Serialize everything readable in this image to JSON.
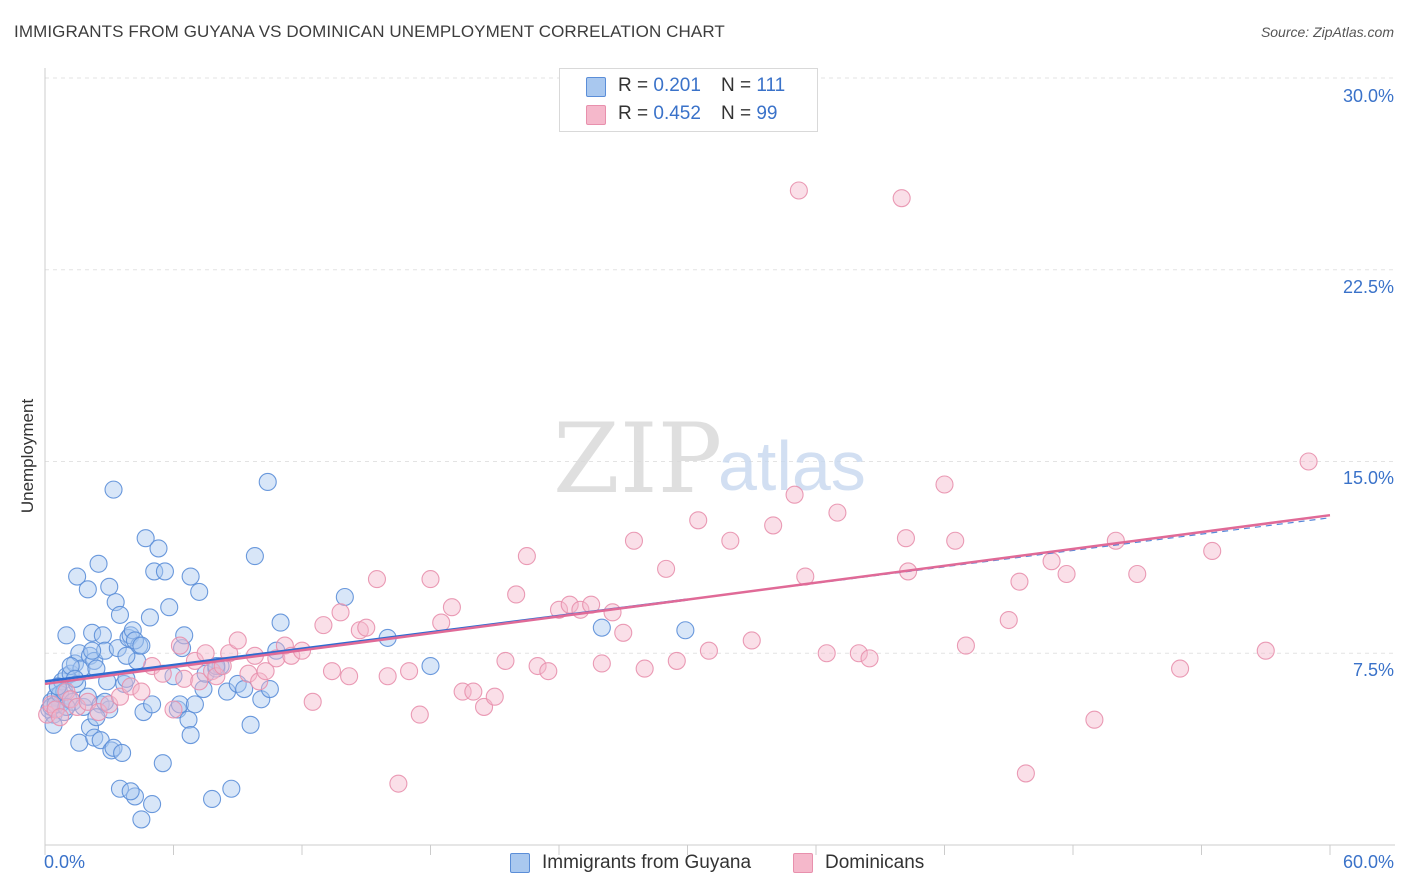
{
  "title": "IMMIGRANTS FROM GUYANA VS DOMINICAN UNEMPLOYMENT CORRELATION CHART",
  "source": "Source: ZipAtlas.com",
  "watermark": {
    "zip": "ZIP",
    "atlas": "atlas"
  },
  "colors": {
    "blue_fill": "#a9c8ef",
    "blue_stroke": "#5b8ed8",
    "blue_line": "#2f6bd0",
    "pink_fill": "#f5b8cb",
    "pink_stroke": "#e890ad",
    "pink_line": "#e06a97",
    "tick_text": "#3a72c9",
    "grid": "#e3e3e3"
  },
  "legend_top": [
    {
      "r_label": "R =",
      "r_value": "0.201",
      "n_label": "N =",
      "n_value": "111",
      "color": "#a9c8ef"
    },
    {
      "r_label": "R =",
      "r_value": "0.452",
      "n_label": "N =",
      "n_value": "99",
      "color": "#f5b8cb"
    }
  ],
  "legend_bottom": [
    {
      "label": "Immigrants from Guyana",
      "color": "#a9c8ef"
    },
    {
      "label": "Dominicans",
      "color": "#f5b8cb"
    }
  ],
  "chart_data": {
    "type": "scatter",
    "title": "IMMIGRANTS FROM GUYANA VS DOMINICAN UNEMPLOYMENT CORRELATION CHART",
    "xlabel": "",
    "ylabel": "Unemployment",
    "xlim": [
      0,
      60
    ],
    "ylim": [
      0,
      30
    ],
    "x_tick_labels": [
      "0.0%",
      "60.0%"
    ],
    "y_ticks": [
      7.5,
      15.0,
      22.5,
      30.0
    ],
    "y_tick_labels": [
      "7.5%",
      "15.0%",
      "22.5%",
      "30.0%"
    ],
    "grid": "horizontal dashed",
    "legend_placement": "top-center and bottom",
    "series": [
      {
        "name": "Immigrants from Guyana",
        "color": "#a9c8ef",
        "trend": {
          "x": [
            0,
            30
          ],
          "y": [
            6.4,
            9.6
          ]
        },
        "points": [
          [
            0.2,
            5.3
          ],
          [
            0.3,
            5.6
          ],
          [
            0.4,
            5.1
          ],
          [
            0.5,
            5.8
          ],
          [
            0.6,
            6.2
          ],
          [
            0.7,
            5.5
          ],
          [
            0.8,
            6.4
          ],
          [
            0.9,
            5.2
          ],
          [
            1.0,
            6.6
          ],
          [
            1.1,
            5.7
          ],
          [
            0.3,
            5.4
          ],
          [
            0.5,
            5.5
          ],
          [
            0.7,
            5.9
          ],
          [
            0.9,
            6.0
          ],
          [
            1.2,
            6.7
          ],
          [
            1.3,
            5.6
          ],
          [
            1.4,
            7.1
          ],
          [
            1.5,
            6.3
          ],
          [
            1.6,
            7.5
          ],
          [
            1.7,
            6.9
          ],
          [
            1.0,
            8.2
          ],
          [
            1.2,
            7.0
          ],
          [
            1.4,
            6.5
          ],
          [
            1.6,
            4.0
          ],
          [
            1.8,
            5.4
          ],
          [
            2.0,
            5.8
          ],
          [
            2.1,
            7.4
          ],
          [
            2.2,
            8.3
          ],
          [
            2.3,
            7.2
          ],
          [
            2.4,
            6.9
          ],
          [
            1.5,
            10.5
          ],
          [
            2.0,
            10.0
          ],
          [
            2.1,
            4.6
          ],
          [
            2.3,
            4.2
          ],
          [
            2.5,
            11.0
          ],
          [
            2.6,
            5.5
          ],
          [
            2.7,
            8.2
          ],
          [
            2.8,
            7.6
          ],
          [
            2.9,
            6.4
          ],
          [
            3.0,
            5.3
          ],
          [
            2.4,
            5.0
          ],
          [
            2.6,
            4.1
          ],
          [
            2.8,
            5.6
          ],
          [
            3.0,
            10.1
          ],
          [
            3.1,
            3.7
          ],
          [
            3.2,
            3.8
          ],
          [
            3.3,
            9.5
          ],
          [
            3.4,
            7.7
          ],
          [
            3.5,
            2.2
          ],
          [
            3.6,
            3.6
          ],
          [
            3.7,
            6.3
          ],
          [
            3.8,
            6.5
          ],
          [
            3.9,
            8.1
          ],
          [
            4.0,
            8.2
          ],
          [
            4.1,
            8.4
          ],
          [
            4.2,
            1.9
          ],
          [
            4.3,
            7.2
          ],
          [
            4.4,
            7.8
          ],
          [
            4.5,
            1.0
          ],
          [
            4.6,
            5.2
          ],
          [
            3.2,
            13.9
          ],
          [
            3.5,
            9.0
          ],
          [
            3.8,
            7.4
          ],
          [
            4.0,
            2.1
          ],
          [
            4.2,
            8.0
          ],
          [
            4.5,
            7.8
          ],
          [
            4.7,
            12.0
          ],
          [
            4.9,
            8.9
          ],
          [
            5.0,
            1.6
          ],
          [
            5.1,
            10.7
          ],
          [
            5.3,
            11.6
          ],
          [
            5.5,
            3.2
          ],
          [
            5.6,
            10.7
          ],
          [
            5.8,
            9.3
          ],
          [
            6.0,
            6.6
          ],
          [
            6.2,
            5.3
          ],
          [
            6.3,
            5.5
          ],
          [
            6.4,
            7.7
          ],
          [
            6.5,
            8.2
          ],
          [
            6.7,
            4.9
          ],
          [
            6.8,
            4.3
          ],
          [
            6.8,
            10.5
          ],
          [
            7.0,
            5.5
          ],
          [
            7.2,
            9.9
          ],
          [
            7.4,
            6.1
          ],
          [
            7.5,
            6.7
          ],
          [
            7.8,
            1.8
          ],
          [
            8.0,
            6.9
          ],
          [
            8.2,
            7.0
          ],
          [
            8.5,
            6.0
          ],
          [
            8.7,
            2.2
          ],
          [
            9.0,
            6.3
          ],
          [
            9.3,
            6.1
          ],
          [
            9.6,
            4.7
          ],
          [
            9.8,
            11.3
          ],
          [
            10.1,
            5.7
          ],
          [
            10.5,
            6.1
          ],
          [
            10.4,
            14.2
          ],
          [
            10.8,
            7.6
          ],
          [
            11.0,
            8.7
          ],
          [
            14.0,
            9.7
          ],
          [
            16.0,
            8.1
          ],
          [
            18.0,
            7.0
          ],
          [
            26.0,
            8.5
          ],
          [
            29.9,
            8.4
          ],
          [
            0.4,
            4.7
          ],
          [
            0.6,
            6.2
          ],
          [
            1.0,
            5.4
          ],
          [
            2.2,
            7.6
          ],
          [
            5.0,
            5.5
          ],
          [
            8.0,
            7.0
          ]
        ]
      },
      {
        "name": "Dominicans",
        "color": "#f5b8cb",
        "trend": {
          "x": [
            0,
            60
          ],
          "y": [
            6.3,
            12.9
          ]
        },
        "points": [
          [
            0.1,
            5.1
          ],
          [
            0.3,
            5.5
          ],
          [
            0.5,
            5.3
          ],
          [
            0.7,
            5.0
          ],
          [
            1.0,
            6.0
          ],
          [
            1.2,
            5.7
          ],
          [
            1.5,
            5.4
          ],
          [
            2.0,
            5.6
          ],
          [
            2.5,
            5.2
          ],
          [
            3.0,
            5.5
          ],
          [
            3.5,
            5.8
          ],
          [
            4.0,
            6.2
          ],
          [
            4.5,
            6.0
          ],
          [
            5.0,
            7.0
          ],
          [
            5.5,
            6.7
          ],
          [
            6.0,
            5.3
          ],
          [
            6.3,
            7.8
          ],
          [
            6.5,
            6.5
          ],
          [
            7.0,
            7.2
          ],
          [
            7.2,
            6.4
          ],
          [
            7.5,
            7.5
          ],
          [
            7.8,
            6.8
          ],
          [
            8.0,
            6.6
          ],
          [
            8.3,
            7.0
          ],
          [
            8.6,
            7.5
          ],
          [
            9.0,
            8.0
          ],
          [
            9.5,
            6.7
          ],
          [
            9.8,
            7.4
          ],
          [
            10.0,
            6.4
          ],
          [
            10.3,
            6.8
          ],
          [
            10.8,
            7.3
          ],
          [
            11.2,
            7.8
          ],
          [
            11.5,
            7.4
          ],
          [
            12.0,
            7.6
          ],
          [
            12.5,
            5.6
          ],
          [
            13.0,
            8.6
          ],
          [
            13.4,
            6.8
          ],
          [
            13.8,
            9.1
          ],
          [
            14.2,
            6.6
          ],
          [
            14.7,
            8.4
          ],
          [
            15.0,
            8.5
          ],
          [
            15.5,
            10.4
          ],
          [
            16.0,
            6.6
          ],
          [
            16.5,
            2.4
          ],
          [
            17.0,
            6.8
          ],
          [
            17.5,
            5.1
          ],
          [
            18.0,
            10.4
          ],
          [
            18.5,
            8.7
          ],
          [
            19.0,
            9.3
          ],
          [
            19.5,
            6.0
          ],
          [
            20.0,
            6.0
          ],
          [
            20.5,
            5.4
          ],
          [
            21.0,
            5.8
          ],
          [
            21.5,
            7.2
          ],
          [
            22.0,
            9.8
          ],
          [
            22.5,
            11.3
          ],
          [
            23.0,
            7.0
          ],
          [
            23.5,
            6.8
          ],
          [
            24.0,
            9.2
          ],
          [
            24.5,
            9.4
          ],
          [
            25.0,
            9.2
          ],
          [
            25.5,
            9.4
          ],
          [
            26.0,
            7.1
          ],
          [
            26.5,
            9.1
          ],
          [
            27.0,
            8.3
          ],
          [
            27.5,
            11.9
          ],
          [
            28.0,
            6.9
          ],
          [
            29.0,
            10.8
          ],
          [
            29.5,
            7.2
          ],
          [
            30.5,
            12.7
          ],
          [
            31.0,
            7.6
          ],
          [
            32.0,
            11.9
          ],
          [
            33.0,
            8.0
          ],
          [
            34.0,
            12.5
          ],
          [
            35.0,
            13.7
          ],
          [
            35.2,
            25.6
          ],
          [
            35.5,
            10.5
          ],
          [
            36.5,
            7.5
          ],
          [
            37.0,
            13.0
          ],
          [
            38.0,
            7.5
          ],
          [
            38.5,
            7.3
          ],
          [
            40.0,
            25.3
          ],
          [
            40.2,
            12.0
          ],
          [
            40.3,
            10.7
          ],
          [
            42.0,
            14.1
          ],
          [
            42.5,
            11.9
          ],
          [
            43.0,
            7.8
          ],
          [
            45.0,
            8.8
          ],
          [
            45.5,
            10.3
          ],
          [
            45.8,
            2.8
          ],
          [
            47.0,
            11.1
          ],
          [
            47.7,
            10.6
          ],
          [
            49.0,
            4.9
          ],
          [
            50.0,
            11.9
          ],
          [
            51.0,
            10.6
          ],
          [
            53.0,
            6.9
          ],
          [
            54.5,
            11.5
          ],
          [
            57.0,
            7.6
          ],
          [
            59.0,
            15.0
          ]
        ]
      }
    ]
  }
}
